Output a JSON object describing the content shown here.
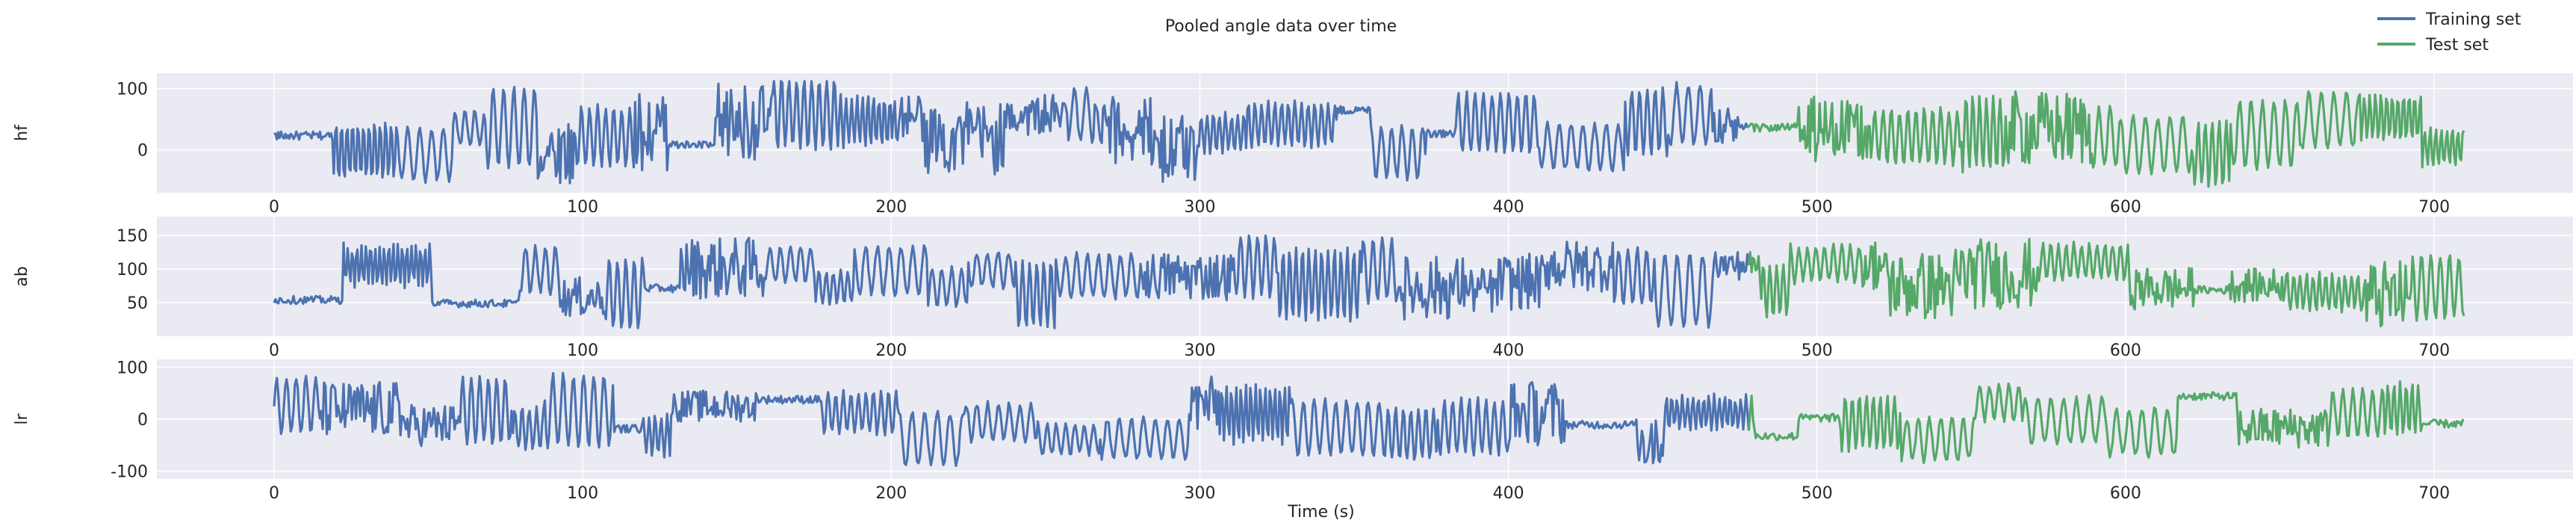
{
  "chart_data": {
    "type": "line",
    "title": "Pooled angle data over time",
    "xlabel": "Time (s)",
    "xlim": [
      -38,
      745
    ],
    "x_ticks": [
      0,
      100,
      200,
      300,
      400,
      500,
      600,
      700
    ],
    "grid": true,
    "legend_position": "upper right",
    "colors": {
      "Training set": "#4c72b0",
      "Test set": "#55a868"
    },
    "split_time": 478,
    "end_time": 710,
    "legend": [
      "Training set",
      "Test set"
    ],
    "series": [
      {
        "name": "Training set"
      },
      {
        "name": "Test set"
      }
    ],
    "panels": [
      {
        "ylabel": "hf",
        "ylim": [
          -70,
          125
        ],
        "y_ticks": [
          0,
          100
        ],
        "range": [
          -60,
          112
        ],
        "base": 20
      },
      {
        "ylabel": "ab",
        "ylim": [
          0,
          178
        ],
        "y_ticks": [
          50,
          100,
          150
        ],
        "range": [
          12,
          158
        ],
        "base": 80
      },
      {
        "ylabel": "lr",
        "ylim": [
          -115,
          115
        ],
        "y_ticks": [
          -100,
          0,
          100
        ],
        "range": [
          -98,
          95
        ],
        "base": 10
      }
    ]
  }
}
